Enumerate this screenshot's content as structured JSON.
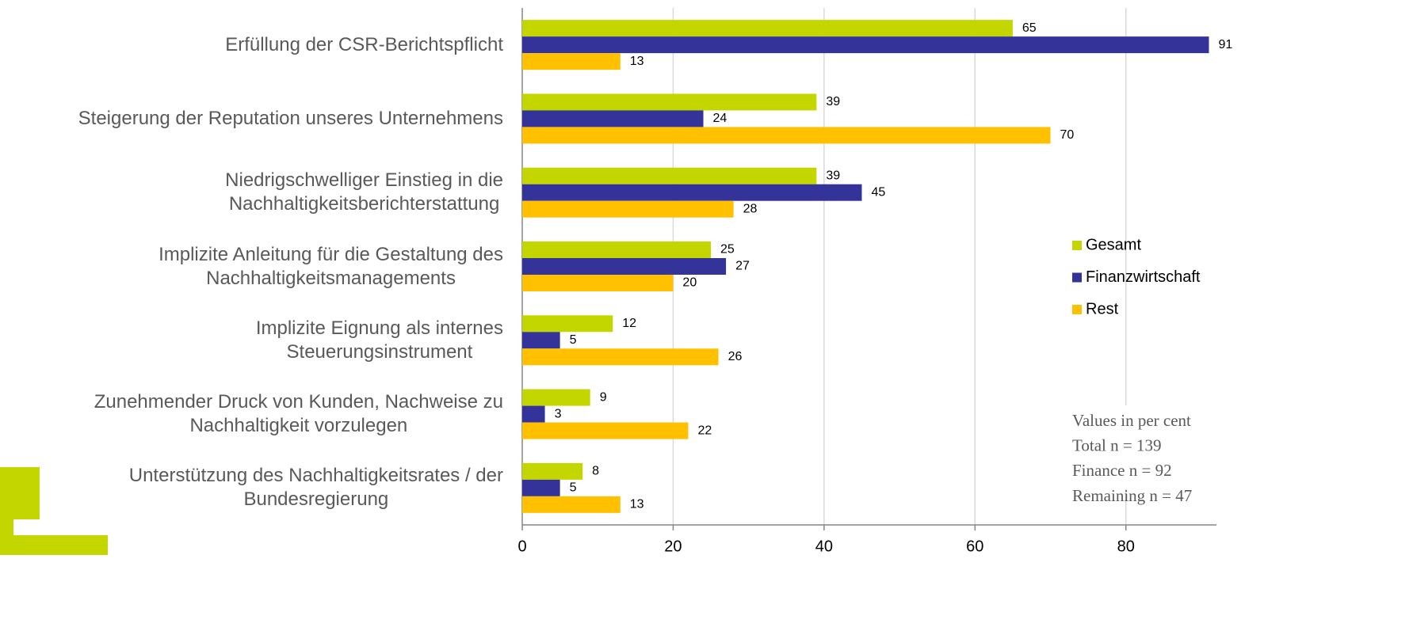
{
  "chart_data": {
    "type": "bar",
    "orientation": "horizontal",
    "categories": [
      "Erfüllung der CSR-Berichtspflicht",
      "Steigerung der Reputation unseres Unternehmens",
      "Niedrigschwelliger Einstieg in die\nNachhaltigkeitsberichterstattung",
      "Implizite Anleitung für die Gestaltung des\nNachhaltigkeitsmanagements",
      "Implizite Eignung als internes\nSteuerungsinstrument",
      "Zunehmender Druck von Kunden, Nachweise zu\nNachhaltigkeit vorzulegen",
      "Unterstützung des Nachhaltigkeitsrates / der\nBundesregierung"
    ],
    "series": [
      {
        "name": "Gesamt",
        "color": "#c4d600",
        "values": [
          65,
          39,
          39,
          25,
          12,
          9,
          8
        ]
      },
      {
        "name": "Finanzwirtschaft",
        "color": "#333399",
        "values": [
          91,
          24,
          45,
          27,
          5,
          3,
          5
        ]
      },
      {
        "name": "Rest",
        "color": "#ffc000",
        "values": [
          13,
          70,
          28,
          20,
          26,
          22,
          13
        ]
      }
    ],
    "xlim": [
      0,
      92
    ],
    "xticks": [
      0,
      20,
      40,
      60,
      80
    ],
    "grid": true,
    "legend": "right",
    "annotations": [
      "Values in per cent",
      "Total n = 139",
      "Finance n = 92",
      "Remaining n = 47"
    ]
  }
}
